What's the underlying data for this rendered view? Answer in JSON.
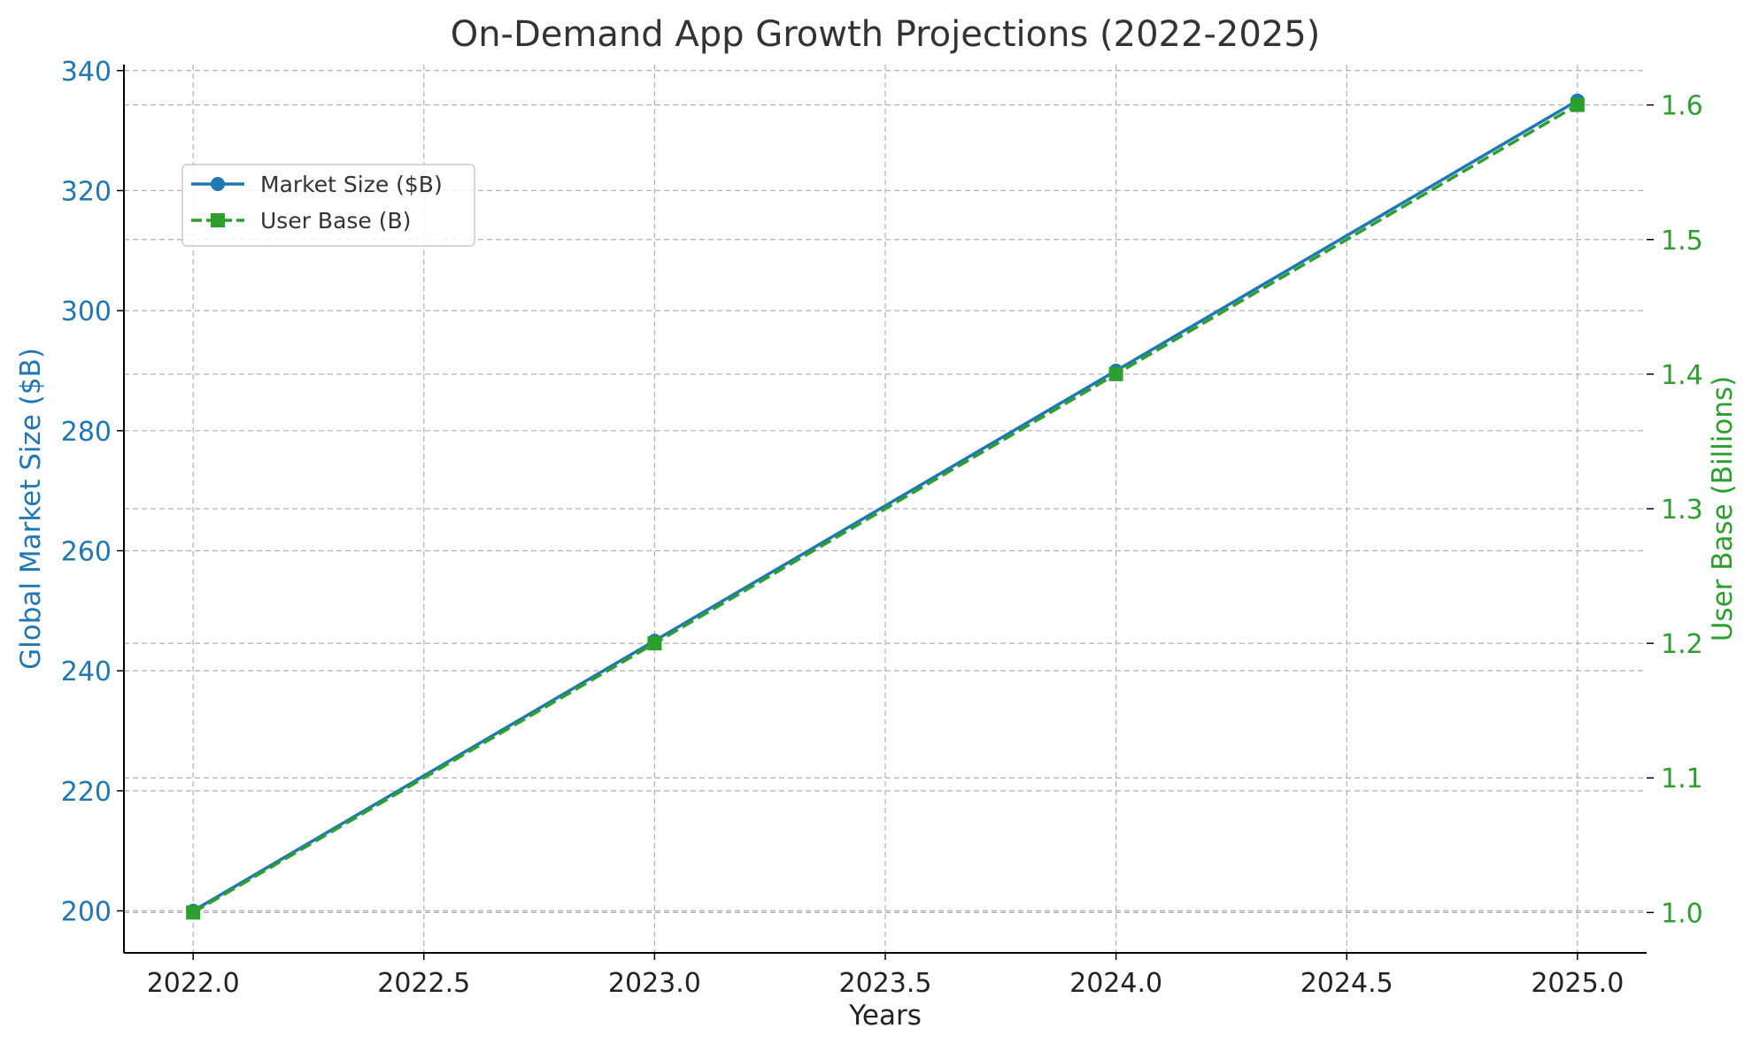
{
  "chart_data": {
    "type": "line",
    "title": "On-Demand App Growth Projections (2022-2025)",
    "xlabel": "Years",
    "ylabel_left": "Global Market Size ($B)",
    "ylabel_right": "User Base (Billions)",
    "x": [
      2022,
      2023,
      2024,
      2025
    ],
    "xlim": [
      2021.85,
      2025.15
    ],
    "x_ticks": [
      2022.0,
      2022.5,
      2023.0,
      2023.5,
      2024.0,
      2024.5,
      2025.0
    ],
    "x_tick_labels": [
      "2022.0",
      "2022.5",
      "2023.0",
      "2023.5",
      "2024.0",
      "2024.5",
      "2025.0"
    ],
    "ylim_left": [
      193,
      341
    ],
    "y_ticks_left": [
      200,
      220,
      240,
      260,
      280,
      300,
      320,
      340
    ],
    "y_tick_labels_left": [
      "200",
      "220",
      "240",
      "260",
      "280",
      "300",
      "320",
      "340"
    ],
    "ylim_right": [
      0.97,
      1.63
    ],
    "y_ticks_right": [
      1.0,
      1.1,
      1.2,
      1.3,
      1.4,
      1.5,
      1.6
    ],
    "y_tick_labels_right": [
      "1.0",
      "1.1",
      "1.2",
      "1.3",
      "1.4",
      "1.5",
      "1.6"
    ],
    "grid": true,
    "legend_position": "upper-left",
    "series": [
      {
        "name": "Market Size ($B)",
        "axis": "left",
        "values": [
          200,
          245,
          290,
          335
        ],
        "color": "#1f77b4",
        "marker": "circle",
        "linestyle": "solid"
      },
      {
        "name": "User Base (B)",
        "axis": "right",
        "values": [
          1.0,
          1.2,
          1.4,
          1.6
        ],
        "color": "#2ca02c",
        "marker": "square",
        "linestyle": "dashed"
      }
    ],
    "left_axis_color": "#1f77b4",
    "right_axis_color": "#2ca02c"
  }
}
